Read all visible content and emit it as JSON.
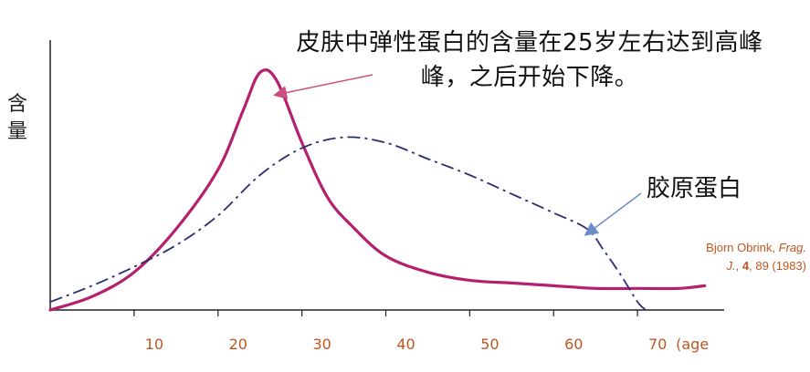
{
  "chart_data": {
    "type": "line",
    "title": "皮肤中弹性蛋白的含量在25岁左右达到高峰，之后开始下降。",
    "title_lines": [
      "皮肤中弹性蛋白的含量在25岁左右达到高峰",
      "峰，之后开始下降。"
    ],
    "ylabel": "含量",
    "xlabel": "(age",
    "x_ticks": [
      10,
      20,
      30,
      40,
      50,
      60,
      70
    ],
    "xlim": [
      0,
      80
    ],
    "ylim": [
      0,
      100
    ],
    "grid": false,
    "series": [
      {
        "label_text": "",
        "color": "#b5206e",
        "style": "solid",
        "points": [
          [
            0,
            0
          ],
          [
            5,
            5
          ],
          [
            10,
            14
          ],
          [
            15,
            30
          ],
          [
            20,
            52
          ],
          [
            23,
            74
          ],
          [
            25,
            88
          ],
          [
            27,
            85
          ],
          [
            30,
            62
          ],
          [
            33,
            42
          ],
          [
            36,
            31
          ],
          [
            40,
            20
          ],
          [
            45,
            14
          ],
          [
            50,
            11
          ],
          [
            55,
            10
          ],
          [
            60,
            9
          ],
          [
            65,
            8
          ],
          [
            70,
            8
          ],
          [
            75,
            8
          ],
          [
            78,
            9
          ]
        ]
      },
      {
        "label_text": "胶原蛋白",
        "color": "#2a2f6e",
        "style": "dash-dot",
        "points": [
          [
            0,
            3
          ],
          [
            5,
            9
          ],
          [
            10,
            16
          ],
          [
            15,
            24
          ],
          [
            20,
            35
          ],
          [
            25,
            50
          ],
          [
            30,
            60
          ],
          [
            35,
            64
          ],
          [
            40,
            62
          ],
          [
            45,
            56
          ],
          [
            50,
            50
          ],
          [
            55,
            43
          ],
          [
            60,
            36
          ],
          [
            64,
            30
          ],
          [
            66,
            22
          ],
          [
            68,
            13
          ],
          [
            70,
            3
          ],
          [
            71,
            0
          ]
        ]
      }
    ],
    "annotations": [
      {
        "text": "皮肤中弹性蛋白的含量在25岁左右达到高峰，之后开始下降。",
        "points_to": [
          25,
          88
        ],
        "arrow_color": "#c8507e"
      },
      {
        "text": "胶原蛋白",
        "points_to": [
          66,
          22
        ],
        "arrow_color": "#6a8cc8"
      }
    ],
    "citation": {
      "author": "Bjorn Obrink,",
      "journal_a": "Frag.",
      "journal_b": "J.",
      "sep": ",",
      "volume": "4",
      "rest": ", 89 (1983)",
      "color": "#c0561f"
    },
    "tick_color": "#c0561f"
  }
}
